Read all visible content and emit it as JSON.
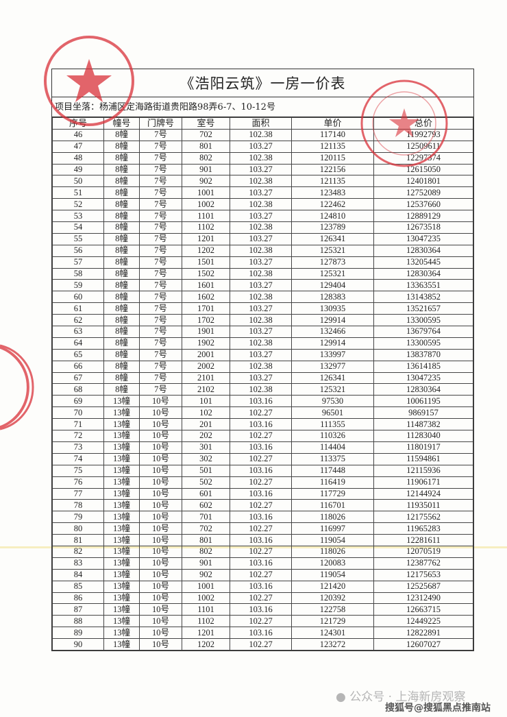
{
  "document": {
    "title": "《浩阳云筑》一房一价表",
    "address": "项目坐落：杨浦区定海路街道贵阳路98弄6-7、10-12号",
    "columns": [
      "序号",
      "幢号",
      "门牌号",
      "室号",
      "面积",
      "单价",
      "总价"
    ],
    "rows": [
      [
        "46",
        "8幢",
        "7号",
        "702",
        "102.38",
        "117140",
        "11992793"
      ],
      [
        "47",
        "8幢",
        "7号",
        "801",
        "103.27",
        "121135",
        "12509611"
      ],
      [
        "48",
        "8幢",
        "7号",
        "802",
        "102.38",
        "120115",
        "12297374"
      ],
      [
        "49",
        "8幢",
        "7号",
        "901",
        "103.27",
        "122156",
        "12615050"
      ],
      [
        "50",
        "8幢",
        "7号",
        "902",
        "102.38",
        "121135",
        "12401801"
      ],
      [
        "51",
        "8幢",
        "7号",
        "1001",
        "103.27",
        "123483",
        "12752089"
      ],
      [
        "52",
        "8幢",
        "7号",
        "1002",
        "102.38",
        "122462",
        "12537660"
      ],
      [
        "53",
        "8幢",
        "7号",
        "1101",
        "103.27",
        "124810",
        "12889129"
      ],
      [
        "54",
        "8幢",
        "7号",
        "1102",
        "102.38",
        "123789",
        "12673518"
      ],
      [
        "55",
        "8幢",
        "7号",
        "1201",
        "103.27",
        "126341",
        "13047235"
      ],
      [
        "56",
        "8幢",
        "7号",
        "1202",
        "102.38",
        "125321",
        "12830364"
      ],
      [
        "57",
        "8幢",
        "7号",
        "1501",
        "103.27",
        "127873",
        "13205445"
      ],
      [
        "58",
        "8幢",
        "7号",
        "1502",
        "102.38",
        "125321",
        "12830364"
      ],
      [
        "59",
        "8幢",
        "7号",
        "1601",
        "103.27",
        "129404",
        "13363551"
      ],
      [
        "60",
        "8幢",
        "7号",
        "1602",
        "102.38",
        "128383",
        "13143852"
      ],
      [
        "61",
        "8幢",
        "7号",
        "1701",
        "103.27",
        "130935",
        "13521657"
      ],
      [
        "62",
        "8幢",
        "7号",
        "1702",
        "102.38",
        "129914",
        "13300595"
      ],
      [
        "63",
        "8幢",
        "7号",
        "1901",
        "103.27",
        "132466",
        "13679764"
      ],
      [
        "64",
        "8幢",
        "7号",
        "1902",
        "102.38",
        "129914",
        "13300595"
      ],
      [
        "65",
        "8幢",
        "7号",
        "2001",
        "103.27",
        "133997",
        "13837870"
      ],
      [
        "66",
        "8幢",
        "7号",
        "2002",
        "102.38",
        "132977",
        "13614185"
      ],
      [
        "67",
        "8幢",
        "7号",
        "2101",
        "103.27",
        "126341",
        "13047235"
      ],
      [
        "68",
        "8幢",
        "7号",
        "2102",
        "102.38",
        "125321",
        "12830364"
      ],
      [
        "69",
        "13幢",
        "10号",
        "101",
        "103.16",
        "97530",
        "10061195"
      ],
      [
        "70",
        "13幢",
        "10号",
        "102",
        "102.27",
        "96501",
        "9869157"
      ],
      [
        "71",
        "13幢",
        "10号",
        "201",
        "103.16",
        "111355",
        "11487382"
      ],
      [
        "72",
        "13幢",
        "10号",
        "202",
        "102.27",
        "110326",
        "11283040"
      ],
      [
        "73",
        "13幢",
        "10号",
        "301",
        "103.16",
        "114404",
        "11801917"
      ],
      [
        "74",
        "13幢",
        "10号",
        "302",
        "102.27",
        "113375",
        "11594861"
      ],
      [
        "75",
        "13幢",
        "10号",
        "501",
        "103.16",
        "117448",
        "12115936"
      ],
      [
        "76",
        "13幢",
        "10号",
        "502",
        "102.27",
        "116419",
        "11906171"
      ],
      [
        "77",
        "13幢",
        "10号",
        "601",
        "103.16",
        "117729",
        "12144924"
      ],
      [
        "78",
        "13幢",
        "10号",
        "602",
        "102.27",
        "116701",
        "11935011"
      ],
      [
        "79",
        "13幢",
        "10号",
        "701",
        "103.16",
        "118026",
        "12175562"
      ],
      [
        "80",
        "13幢",
        "10号",
        "702",
        "102.27",
        "116997",
        "11965283"
      ],
      [
        "81",
        "13幢",
        "10号",
        "801",
        "103.16",
        "119054",
        "12281611"
      ],
      [
        "82",
        "13幢",
        "10号",
        "802",
        "102.27",
        "118026",
        "12070519"
      ],
      [
        "83",
        "13幢",
        "10号",
        "901",
        "103.16",
        "120083",
        "12387762"
      ],
      [
        "84",
        "13幢",
        "10号",
        "902",
        "102.27",
        "119054",
        "12175653"
      ],
      [
        "85",
        "13幢",
        "10号",
        "1001",
        "103.16",
        "121420",
        "12525687"
      ],
      [
        "86",
        "13幢",
        "10号",
        "1002",
        "102.27",
        "120392",
        "12312490"
      ],
      [
        "87",
        "13幢",
        "10号",
        "1101",
        "103.16",
        "122758",
        "12663715"
      ],
      [
        "88",
        "13幢",
        "10号",
        "1102",
        "102.27",
        "121729",
        "12449225"
      ],
      [
        "89",
        "13幢",
        "10号",
        "1201",
        "103.16",
        "124301",
        "12822891"
      ],
      [
        "90",
        "13幢",
        "10号",
        "1202",
        "102.27",
        "123272",
        "12607027"
      ]
    ]
  },
  "stamps": {
    "color": "#d9323a"
  },
  "watermarks": {
    "wechat": "公众号 · 上海新房观察",
    "sohu": "搜狐号@搜狐黑点推南站"
  }
}
